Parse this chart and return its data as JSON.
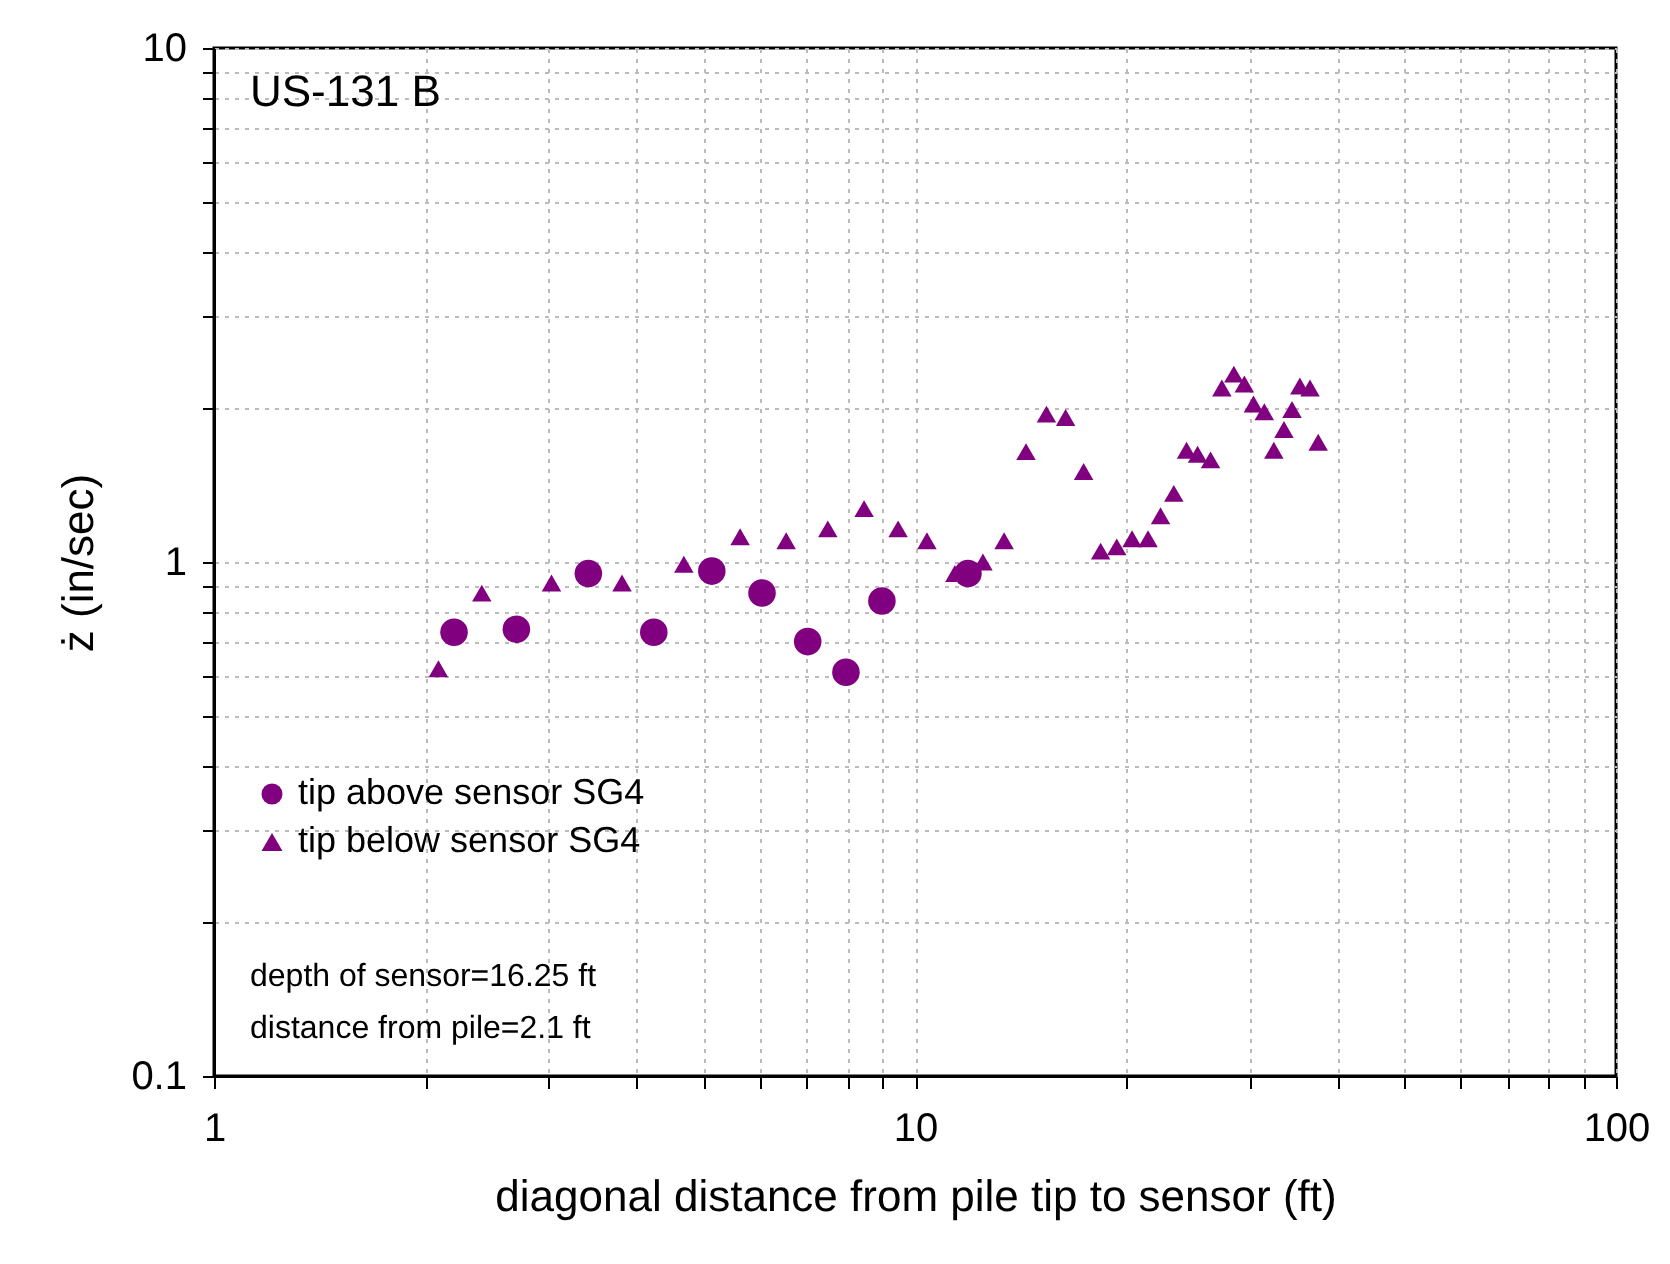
{
  "chart_data": {
    "type": "scatter",
    "xlabel": "diagonal distance from pile tip to sensor (ft)",
    "ylabel": "ż (in/sec)",
    "log": "xy",
    "xlim": [
      1,
      100
    ],
    "ylim": [
      0.1,
      10
    ],
    "xticks": [
      1,
      {
        "value": 2,
        "label": null
      },
      {
        "value": 3,
        "label": null
      },
      {
        "value": 4,
        "label": null
      },
      {
        "value": 5,
        "label": null
      },
      {
        "value": 6,
        "label": null
      },
      {
        "value": 7,
        "label": null
      },
      {
        "value": 8,
        "label": null
      },
      {
        "value": 9,
        "label": null
      },
      10,
      {
        "value": 20,
        "label": null
      },
      {
        "value": 30,
        "label": null
      },
      {
        "value": 40,
        "label": null
      },
      {
        "value": 50,
        "label": null
      },
      {
        "value": 60,
        "label": null
      },
      {
        "value": 70,
        "label": null
      },
      {
        "value": 80,
        "label": null
      },
      {
        "value": 90,
        "label": null
      },
      100
    ],
    "yticks": [
      0.1,
      {
        "value": 0.2,
        "label": null
      },
      {
        "value": 0.3,
        "label": null
      },
      {
        "value": 0.4,
        "label": null
      },
      {
        "value": 0.5,
        "label": null
      },
      {
        "value": 0.6,
        "label": null
      },
      {
        "value": 0.7,
        "label": null
      },
      {
        "value": 0.8,
        "label": null
      },
      {
        "value": 0.9,
        "label": null
      },
      1,
      {
        "value": 2,
        "label": null
      },
      {
        "value": 3,
        "label": null
      },
      {
        "value": 4,
        "label": null
      },
      {
        "value": 5,
        "label": null
      },
      {
        "value": 6,
        "label": null
      },
      {
        "value": 7,
        "label": null
      },
      {
        "value": 8,
        "label": null
      },
      {
        "value": 9,
        "label": null
      },
      10
    ],
    "grid": true,
    "legend": "bottom left",
    "annotations": [
      "US-131 B",
      "depth of sensor=16.25 ft",
      "distance from pile=2.1 ft"
    ],
    "series": [
      {
        "name": "tip above sensor SG4",
        "color": "#800080",
        "marker": "circle",
        "x": [
          2.2,
          2.7,
          3.42,
          4.24,
          5.13,
          6.05,
          7.03,
          7.97,
          8.97,
          11.9
        ],
        "values": [
          0.73,
          0.74,
          0.95,
          0.73,
          0.96,
          0.87,
          0.7,
          0.61,
          0.84,
          0.95
        ]
      },
      {
        "name": "tip below sensor SG4",
        "color": "#800080",
        "marker": "triangle",
        "x": [
          2.09,
          2.41,
          3.03,
          3.82,
          4.68,
          5.63,
          6.55,
          7.51,
          8.46,
          9.46,
          10.4,
          11.4,
          12.5,
          13.4,
          14.4,
          15.4,
          16.4,
          17.4,
          18.4,
          19.4,
          20.4,
          21.5,
          22.4,
          23.4,
          24.4,
          25.3,
          26.4,
          27.4,
          28.5,
          29.5,
          30.4,
          31.5,
          32.5,
          33.6,
          34.5,
          35.4,
          36.6,
          37.6
        ],
        "values": [
          0.62,
          0.87,
          0.91,
          0.91,
          0.99,
          1.12,
          1.1,
          1.16,
          1.27,
          1.16,
          1.1,
          0.95,
          1.0,
          1.1,
          1.64,
          1.94,
          1.91,
          1.5,
          1.05,
          1.07,
          1.11,
          1.11,
          1.23,
          1.36,
          1.65,
          1.62,
          1.58,
          2.18,
          2.32,
          2.22,
          2.03,
          1.96,
          1.65,
          1.81,
          1.98,
          2.2,
          2.18,
          1.71
        ]
      }
    ]
  }
}
